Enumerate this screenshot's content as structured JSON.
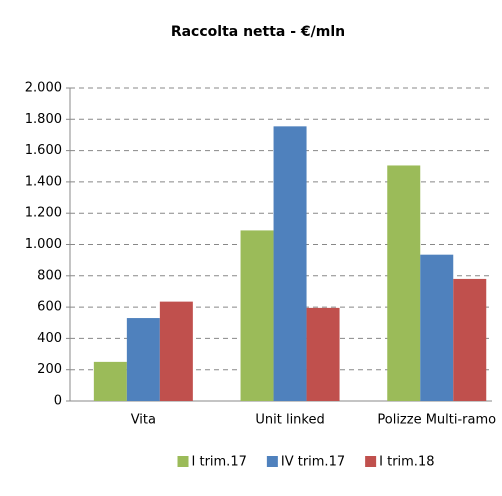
{
  "chart_data": {
    "type": "bar",
    "title": "Raccolta netta - €/mln",
    "categories": [
      "Vita",
      "Unit linked",
      "Polizze Multi-ramo"
    ],
    "series": [
      {
        "name": "I trim.17",
        "color": "#9bbb59",
        "values": [
          250,
          1090,
          1505
        ]
      },
      {
        "name": "IV trim.17",
        "color": "#4f81bd",
        "values": [
          530,
          1755,
          935
        ]
      },
      {
        "name": "I trim.18",
        "color": "#c0504d",
        "values": [
          635,
          595,
          780
        ]
      }
    ],
    "ylim": [
      0,
      2000
    ],
    "yticks": [
      0,
      200,
      400,
      600,
      800,
      {
        "value": 1000,
        "label": "1.000"
      },
      {
        "value": 1200,
        "label": "1.200"
      },
      {
        "value": 1400,
        "label": "1.400"
      },
      {
        "value": 1600,
        "label": "1.600"
      },
      {
        "value": 1800,
        "label": "1.800"
      },
      {
        "value": 2000,
        "label": "2.000"
      }
    ],
    "grid": true,
    "legend": "bottom"
  }
}
